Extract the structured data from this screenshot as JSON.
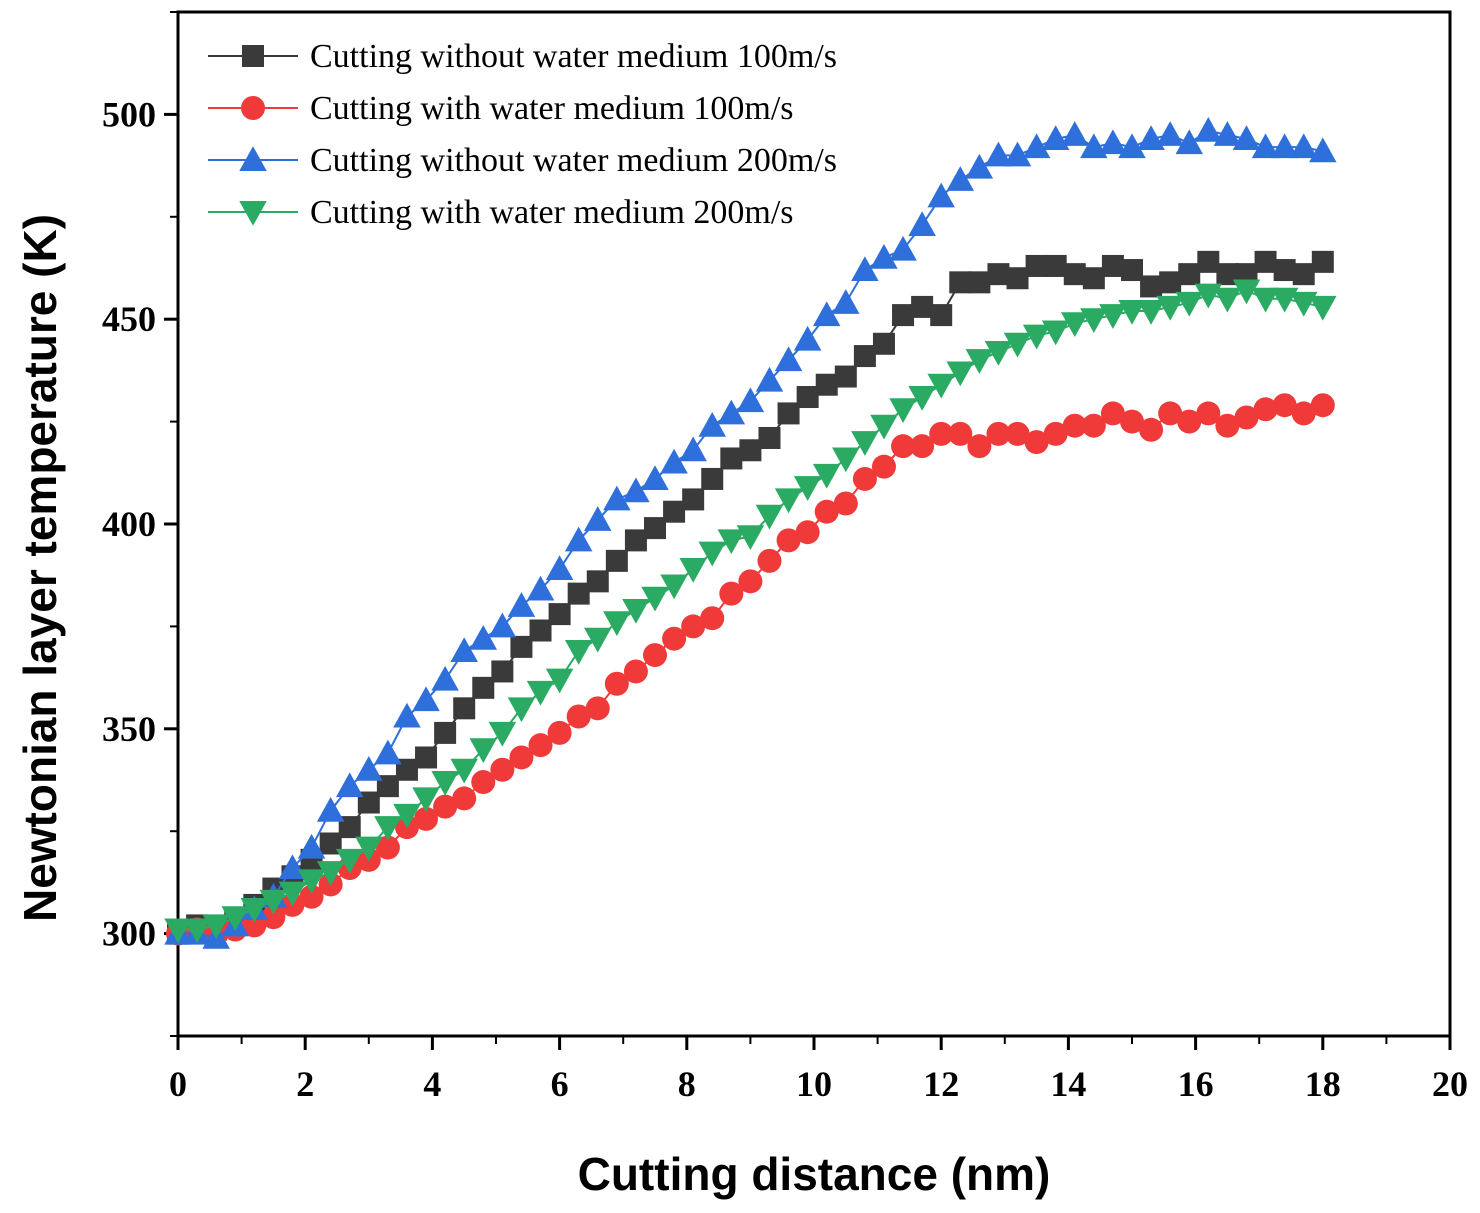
{
  "chart_data": {
    "type": "line",
    "title": "",
    "xlabel": "Cutting distance (nm)",
    "ylabel": "Newtonian layer temperature (K)",
    "xlim": [
      0,
      20
    ],
    "ylim": [
      275,
      525
    ],
    "xticks": [
      0,
      2,
      4,
      6,
      8,
      10,
      12,
      14,
      16,
      18,
      20
    ],
    "yticks": [
      300,
      350,
      400,
      450,
      500
    ],
    "grid": false,
    "legend_position": "top-left",
    "series": [
      {
        "name": "Cutting without water medium 100m/s",
        "color": "#3a3a3a",
        "marker": "square",
        "x": [
          0,
          0.3,
          0.6,
          0.9,
          1.2,
          1.5,
          1.8,
          2.1,
          2.4,
          2.7,
          3.0,
          3.3,
          3.6,
          3.9,
          4.2,
          4.5,
          4.8,
          5.1,
          5.4,
          5.7,
          6.0,
          6.3,
          6.6,
          6.9,
          7.2,
          7.5,
          7.8,
          8.1,
          8.4,
          8.7,
          9.0,
          9.3,
          9.6,
          9.9,
          10.2,
          10.5,
          10.8,
          11.1,
          11.4,
          11.7,
          12.0,
          12.3,
          12.6,
          12.9,
          13.2,
          13.5,
          13.8,
          14.1,
          14.4,
          14.7,
          15.0,
          15.3,
          15.6,
          15.9,
          16.2,
          16.5,
          16.8,
          17.1,
          17.4,
          17.7,
          18.0
        ],
        "y": [
          300,
          302,
          301,
          303,
          307,
          311,
          314,
          318,
          322,
          326,
          332,
          336,
          340,
          343,
          349,
          355,
          360,
          364,
          370,
          374,
          378,
          383,
          386,
          391,
          396,
          399,
          403,
          406,
          411,
          416,
          418,
          421,
          427,
          431,
          434,
          436,
          441,
          444,
          451,
          453,
          451,
          459,
          459,
          461,
          460,
          463,
          463,
          461,
          460,
          463,
          462,
          458,
          459,
          461,
          464,
          461,
          461,
          464,
          462,
          461,
          464
        ]
      },
      {
        "name": "Cutting with water medium 100m/s",
        "color": "#f03a3a",
        "marker": "circle",
        "x": [
          0,
          0.3,
          0.6,
          0.9,
          1.2,
          1.5,
          1.8,
          2.1,
          2.4,
          2.7,
          3.0,
          3.3,
          3.6,
          3.9,
          4.2,
          4.5,
          4.8,
          5.1,
          5.4,
          5.7,
          6.0,
          6.3,
          6.6,
          6.9,
          7.2,
          7.5,
          7.8,
          8.1,
          8.4,
          8.7,
          9.0,
          9.3,
          9.6,
          9.9,
          10.2,
          10.5,
          10.8,
          11.1,
          11.4,
          11.7,
          12.0,
          12.3,
          12.6,
          12.9,
          13.2,
          13.5,
          13.8,
          14.1,
          14.4,
          14.7,
          15.0,
          15.3,
          15.6,
          15.9,
          16.2,
          16.5,
          16.8,
          17.1,
          17.4,
          17.7,
          18.0
        ],
        "y": [
          300,
          301,
          300,
          301,
          302,
          304,
          307,
          309,
          312,
          316,
          318,
          321,
          326,
          328,
          331,
          333,
          337,
          340,
          343,
          346,
          349,
          353,
          355,
          361,
          364,
          368,
          372,
          375,
          377,
          383,
          386,
          391,
          396,
          398,
          403,
          405,
          411,
          414,
          419,
          419,
          422,
          422,
          419,
          422,
          422,
          420,
          422,
          424,
          424,
          427,
          425,
          423,
          427,
          425,
          427,
          424,
          426,
          428,
          429,
          427,
          429
        ]
      },
      {
        "name": "Cutting without water medium 200m/s",
        "color": "#2f6fdc",
        "marker": "triangle-up",
        "x": [
          0,
          0.3,
          0.6,
          0.9,
          1.2,
          1.5,
          1.8,
          2.1,
          2.4,
          2.7,
          3.0,
          3.3,
          3.6,
          3.9,
          4.2,
          4.5,
          4.8,
          5.1,
          5.4,
          5.7,
          6.0,
          6.3,
          6.6,
          6.9,
          7.2,
          7.5,
          7.8,
          8.1,
          8.4,
          8.7,
          9.0,
          9.3,
          9.6,
          9.9,
          10.2,
          10.5,
          10.8,
          11.1,
          11.4,
          11.7,
          12.0,
          12.3,
          12.6,
          12.9,
          13.2,
          13.5,
          13.8,
          14.1,
          14.4,
          14.7,
          15.0,
          15.3,
          15.6,
          15.9,
          16.2,
          16.5,
          16.8,
          17.1,
          17.4,
          17.7,
          18.0
        ],
        "y": [
          300,
          300,
          299,
          302,
          306,
          309,
          316,
          321,
          330,
          336,
          340,
          344,
          353,
          357,
          362,
          369,
          372,
          375,
          380,
          384,
          389,
          396,
          401,
          406,
          408,
          411,
          415,
          418,
          424,
          427,
          430,
          435,
          440,
          445,
          451,
          454,
          462,
          465,
          467,
          473,
          480,
          484,
          487,
          490,
          490,
          492,
          494,
          495,
          492,
          493,
          492,
          494,
          495,
          493,
          496,
          495,
          494,
          492,
          492,
          492,
          491
        ]
      },
      {
        "name": "Cutting with water medium 200m/s",
        "color": "#2aaa62",
        "marker": "triangle-down",
        "x": [
          0,
          0.3,
          0.6,
          0.9,
          1.2,
          1.5,
          1.8,
          2.1,
          2.4,
          2.7,
          3.0,
          3.3,
          3.6,
          3.9,
          4.2,
          4.5,
          4.8,
          5.1,
          5.4,
          5.7,
          6.0,
          6.3,
          6.6,
          6.9,
          7.2,
          7.5,
          7.8,
          8.1,
          8.4,
          8.7,
          9.0,
          9.3,
          9.6,
          9.9,
          10.2,
          10.5,
          10.8,
          11.1,
          11.4,
          11.7,
          12.0,
          12.3,
          12.6,
          12.9,
          13.2,
          13.5,
          13.8,
          14.1,
          14.4,
          14.7,
          15.0,
          15.3,
          15.6,
          15.9,
          16.2,
          16.5,
          16.8,
          17.1,
          17.4,
          17.7,
          18.0
        ],
        "y": [
          301,
          301,
          302,
          304,
          306,
          308,
          310,
          313,
          315,
          318,
          321,
          326,
          329,
          333,
          337,
          340,
          345,
          349,
          355,
          359,
          362,
          369,
          372,
          376,
          379,
          382,
          385,
          389,
          393,
          396,
          397,
          402,
          406,
          409,
          412,
          416,
          420,
          424,
          428,
          431,
          434,
          437,
          440,
          442,
          444,
          446,
          447,
          449,
          450,
          451,
          452,
          452,
          453,
          454,
          456,
          455,
          457,
          455,
          455,
          454,
          453
        ]
      }
    ]
  }
}
